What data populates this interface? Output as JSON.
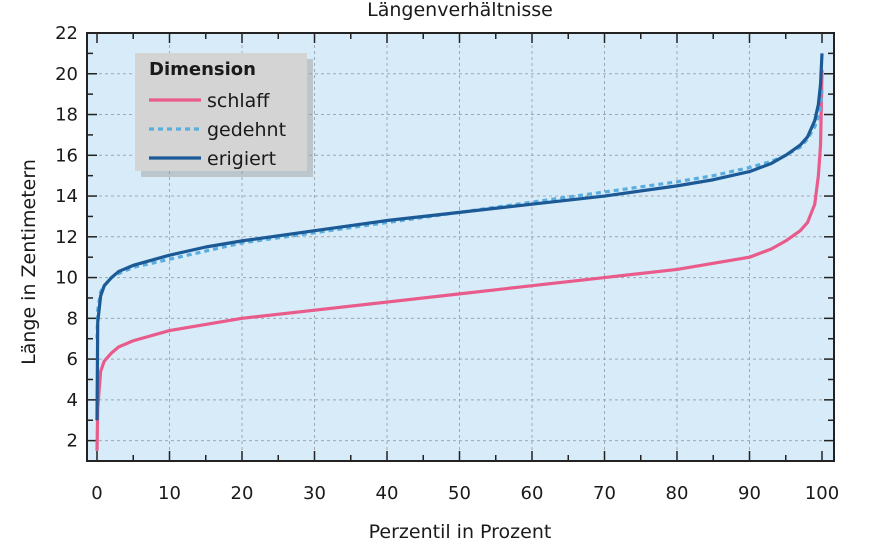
{
  "chart_data": {
    "type": "line",
    "title": "Längenverhältnisse",
    "xlabel": "Perzentil in Prozent",
    "ylabel": "Länge in Zentimetern",
    "xlim": [
      0,
      100
    ],
    "ylim": [
      1,
      22
    ],
    "xticks": [
      0,
      10,
      20,
      30,
      40,
      50,
      60,
      70,
      80,
      90,
      100
    ],
    "yticks": [
      2,
      4,
      6,
      8,
      10,
      12,
      14,
      16,
      18,
      20,
      22
    ],
    "grid": true,
    "legend": {
      "title": "Dimension",
      "position": "top-left"
    },
    "series": [
      {
        "name": "schlaff",
        "color": "#e95b8a",
        "style": "solid",
        "x": [
          0,
          0.1,
          0.5,
          1,
          2,
          3,
          5,
          10,
          15,
          20,
          30,
          40,
          50,
          60,
          70,
          80,
          85,
          90,
          93,
          95,
          97,
          98,
          99,
          99.5,
          99.8,
          100
        ],
        "y": [
          1.5,
          3.6,
          5.4,
          5.9,
          6.3,
          6.6,
          6.9,
          7.4,
          7.7,
          8.0,
          8.4,
          8.8,
          9.2,
          9.6,
          10.0,
          10.4,
          10.7,
          11.0,
          11.4,
          11.8,
          12.3,
          12.7,
          13.6,
          15.0,
          16.5,
          20.2
        ]
      },
      {
        "name": "gedehnt",
        "color": "#5aaede",
        "style": "dashed",
        "x": [
          0,
          0.1,
          0.5,
          1,
          2,
          3,
          5,
          10,
          15,
          20,
          30,
          40,
          50,
          60,
          70,
          80,
          85,
          90,
          93,
          95,
          97,
          98,
          99,
          99.5,
          99.8,
          100
        ],
        "y": [
          7.0,
          8.4,
          9.3,
          9.6,
          10.0,
          10.2,
          10.5,
          10.9,
          11.3,
          11.7,
          12.2,
          12.7,
          13.2,
          13.7,
          14.2,
          14.7,
          15.0,
          15.4,
          15.7,
          16.0,
          16.4,
          16.8,
          17.4,
          17.9,
          18.4,
          19.2
        ]
      },
      {
        "name": "erigiert",
        "color": "#1b5a96",
        "style": "solid",
        "x": [
          0,
          0.1,
          0.5,
          1,
          2,
          3,
          5,
          10,
          15,
          20,
          30,
          40,
          50,
          60,
          70,
          80,
          85,
          90,
          93,
          95,
          97,
          98,
          99,
          99.5,
          99.8,
          100
        ],
        "y": [
          3.0,
          7.8,
          9.1,
          9.6,
          10.0,
          10.3,
          10.6,
          11.1,
          11.5,
          11.8,
          12.3,
          12.8,
          13.2,
          13.6,
          14.0,
          14.5,
          14.8,
          15.2,
          15.6,
          16.0,
          16.5,
          16.9,
          17.7,
          18.5,
          19.5,
          21.0
        ]
      }
    ]
  }
}
